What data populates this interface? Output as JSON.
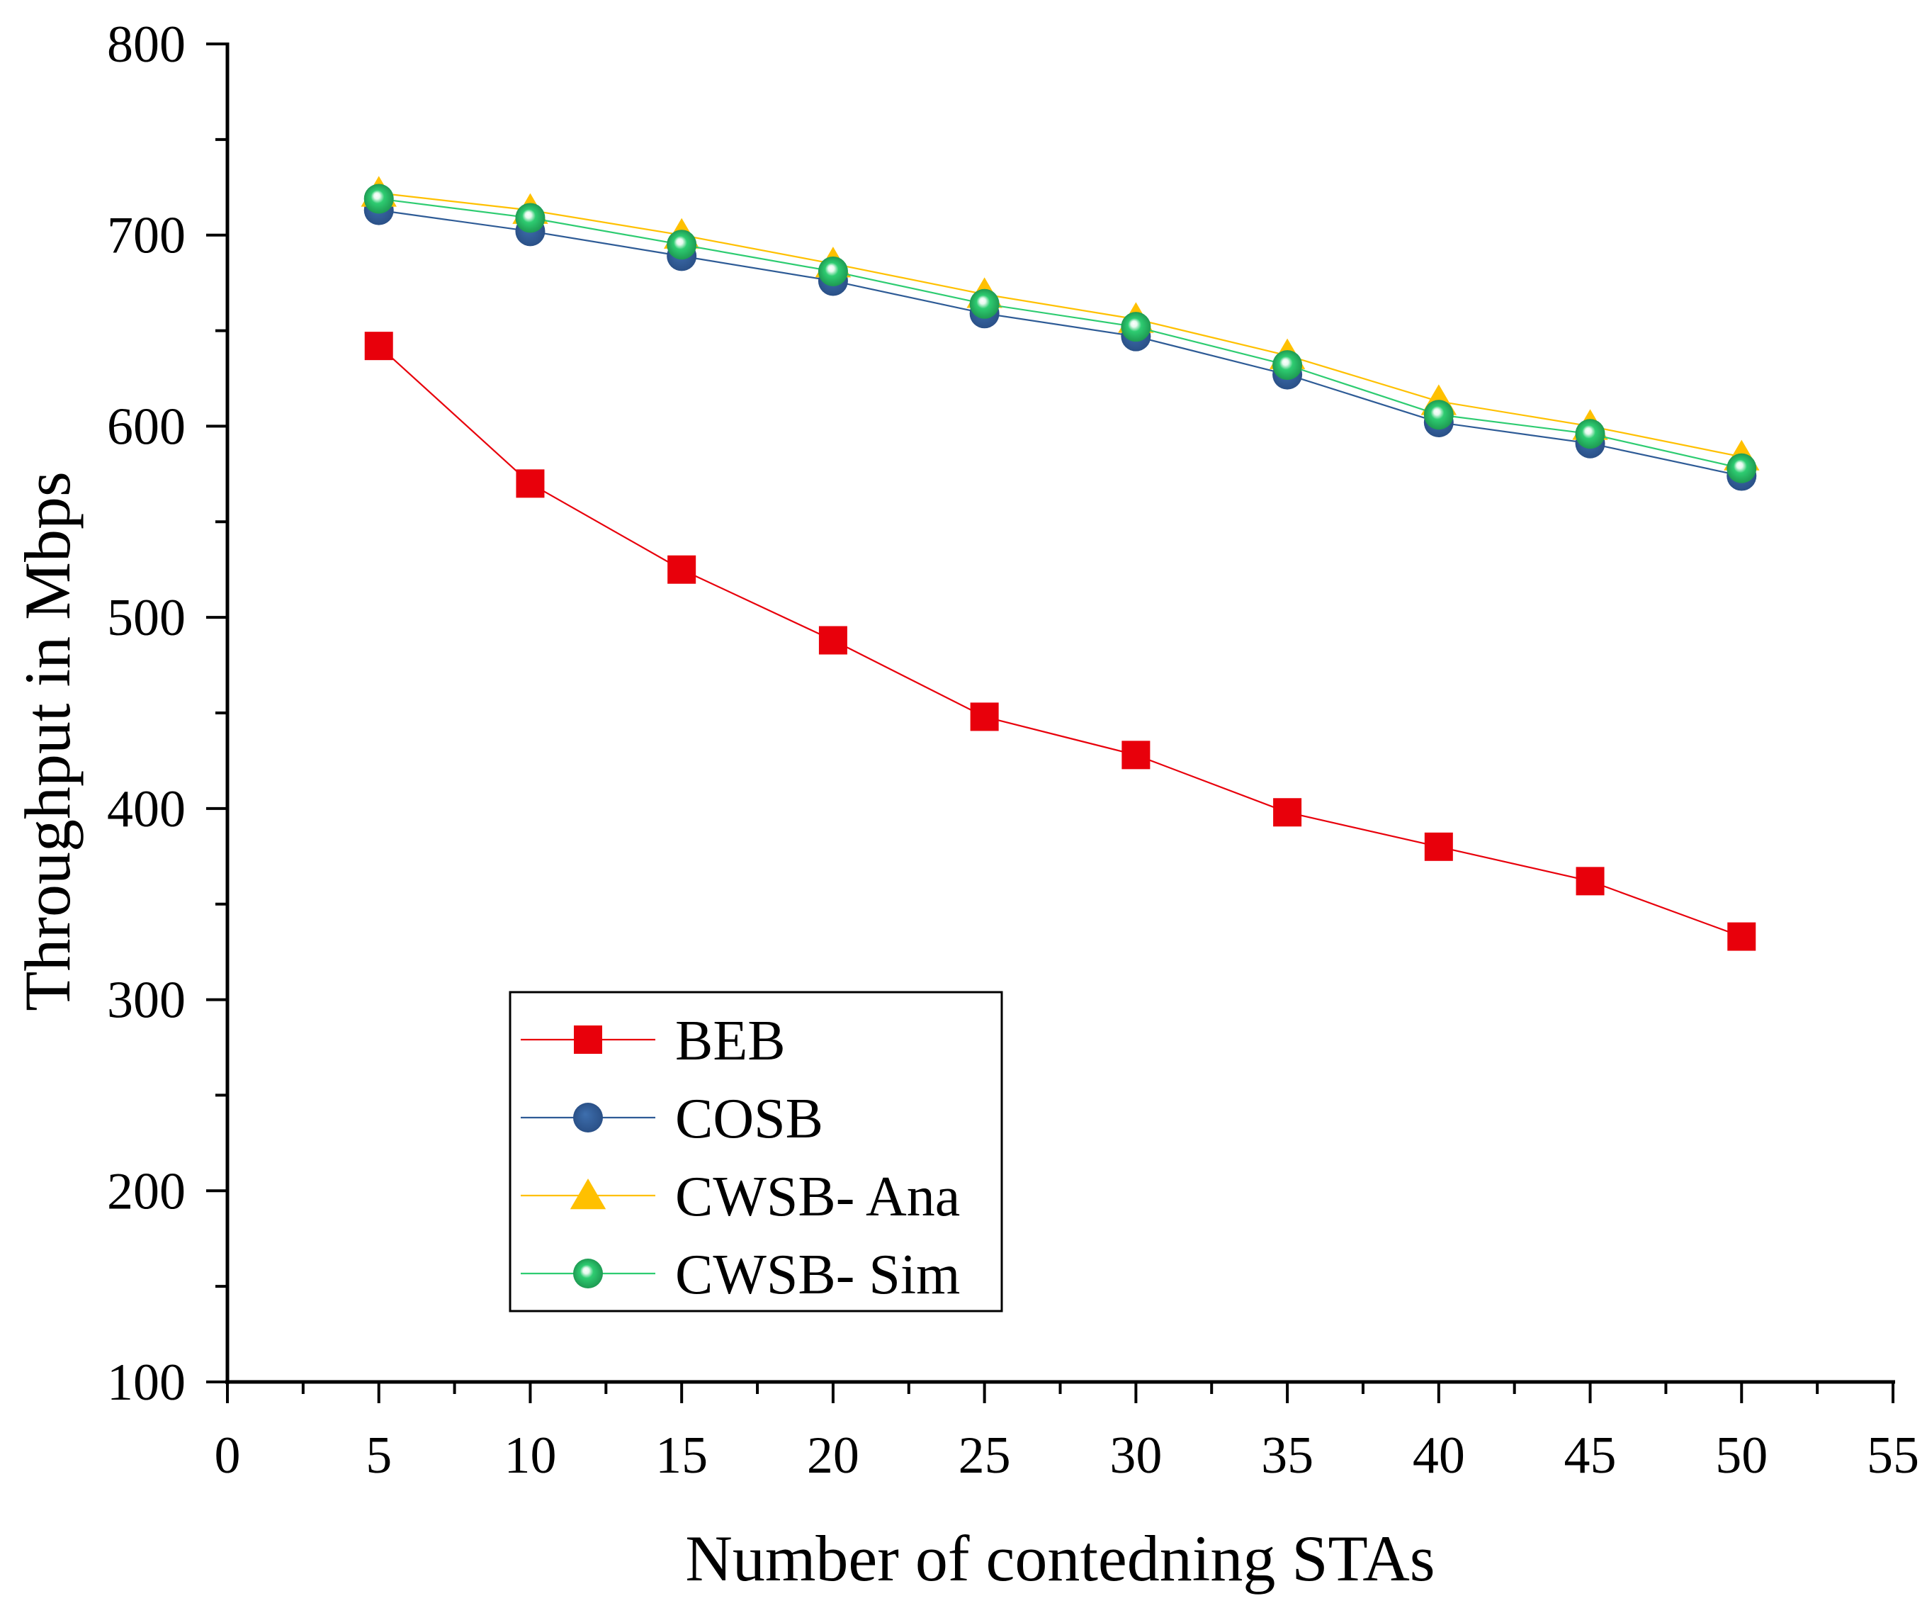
{
  "chart_data": {
    "type": "line",
    "title": "",
    "xlabel": "Number of contedning STAs",
    "ylabel": "Throughput in Mbps",
    "xlim": [
      0,
      55
    ],
    "ylim": [
      100,
      800
    ],
    "xticks": [
      0,
      5,
      10,
      15,
      20,
      25,
      30,
      35,
      40,
      45,
      50,
      55
    ],
    "yticks": [
      100,
      200,
      300,
      400,
      500,
      600,
      700,
      800
    ],
    "grid": false,
    "legend_position": "bottom-left",
    "x": [
      5,
      10,
      15,
      20,
      25,
      30,
      35,
      40,
      45,
      50
    ],
    "series": [
      {
        "name": "BEB",
        "marker": "square",
        "color": "#e8000b",
        "values": [
          642,
          570,
          525,
          488,
          448,
          428,
          398,
          380,
          362,
          333
        ]
      },
      {
        "name": "COSB",
        "marker": "circle",
        "color": "#2e5b96",
        "values": [
          713,
          702,
          689,
          676,
          659,
          647,
          627,
          602,
          591,
          574
        ]
      },
      {
        "name": "CWSB- Ana",
        "marker": "triangle",
        "color": "#ffc000",
        "values": [
          722,
          713,
          700,
          685,
          669,
          656,
          637,
          613,
          600,
          584
        ]
      },
      {
        "name": "CWSB- Sim",
        "marker": "sphere",
        "color": "#2ecc71",
        "values": [
          719,
          709,
          695,
          681,
          664,
          652,
          632,
          606,
          596,
          578
        ]
      }
    ]
  }
}
